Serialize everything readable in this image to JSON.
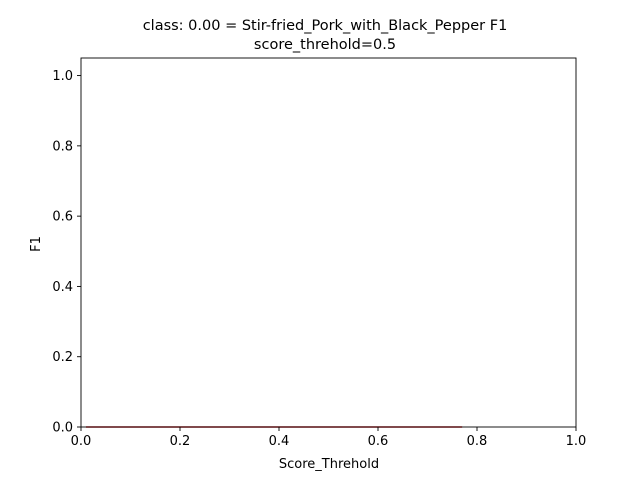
{
  "chart_data": {
    "type": "line",
    "title_line1": "class: 0.00 = Stir-fried_Pork_with_Black_Pepper F1",
    "title_line2": "score_threhold=0.5",
    "xlabel": "Score_Threhold",
    "ylabel": "F1",
    "xlim": [
      0.0,
      1.0
    ],
    "ylim": [
      0.0,
      1.05
    ],
    "xticks": [
      "0.0",
      "0.2",
      "0.4",
      "0.6",
      "0.8",
      "1.0"
    ],
    "yticks": [
      "0.0",
      "0.2",
      "0.4",
      "0.6",
      "0.8",
      "1.0"
    ],
    "grid": false,
    "series": [
      {
        "color": "#d62728",
        "x": [
          0.01,
          0.77
        ],
        "y": [
          0.0,
          0.0
        ]
      }
    ]
  }
}
